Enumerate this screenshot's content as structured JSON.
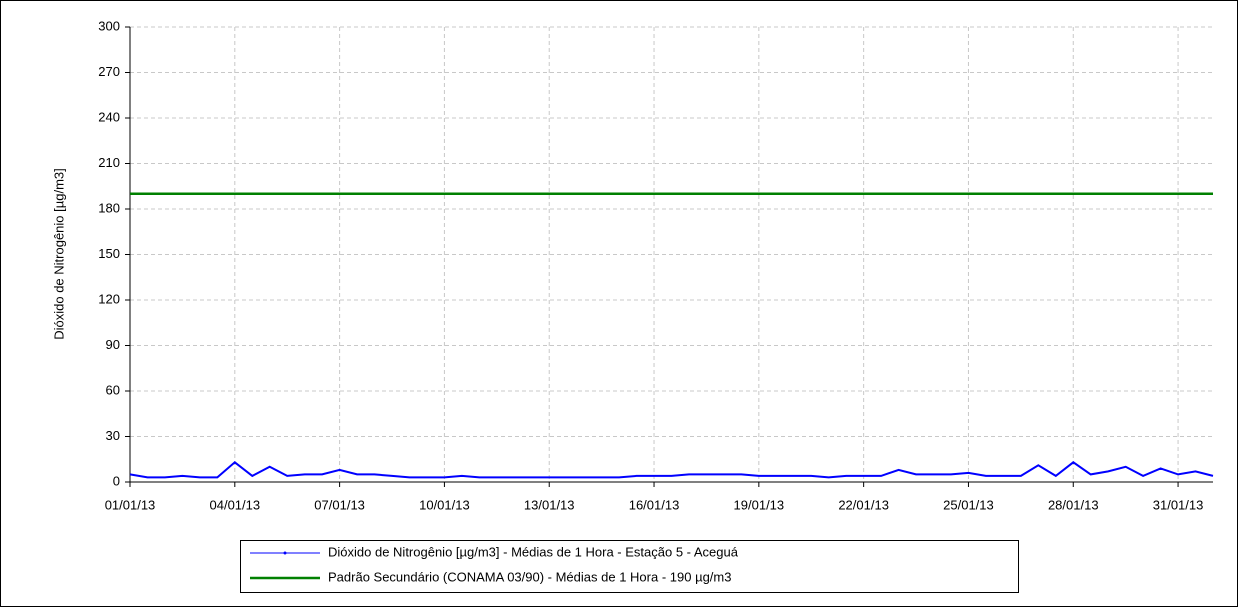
{
  "chart_data": {
    "type": "line",
    "ylabel": "Dióxido de Nitrogênio [µg/m3]",
    "xlim": [
      1,
      32
    ],
    "xticks": [
      {
        "value": 1,
        "label": "01/01/13"
      },
      {
        "value": 4,
        "label": "04/01/13"
      },
      {
        "value": 7,
        "label": "07/01/13"
      },
      {
        "value": 10,
        "label": "10/01/13"
      },
      {
        "value": 13,
        "label": "13/01/13"
      },
      {
        "value": 16,
        "label": "16/01/13"
      },
      {
        "value": 19,
        "label": "19/01/13"
      },
      {
        "value": 22,
        "label": "22/01/13"
      },
      {
        "value": 25,
        "label": "25/01/13"
      },
      {
        "value": 28,
        "label": "28/01/13"
      },
      {
        "value": 31,
        "label": "31/01/13"
      }
    ],
    "ylim": [
      0,
      300
    ],
    "yticks": [
      0,
      30,
      60,
      90,
      120,
      150,
      180,
      210,
      240,
      270,
      300
    ],
    "grid": true,
    "series": [
      {
        "name": "Dióxido de Nitrogênio [µg/m3] - Médias de 1 Hora - Estação 5 - Aceguá",
        "color": "#0000ff",
        "x": [
          1,
          1.5,
          2,
          2.5,
          3,
          3.5,
          4,
          4.5,
          5,
          5.5,
          6,
          6.5,
          7,
          7.5,
          8,
          8.5,
          9,
          9.5,
          10,
          10.5,
          11,
          11.5,
          12,
          12.5,
          13,
          13.5,
          14,
          14.5,
          15,
          15.5,
          16,
          16.5,
          17,
          17.5,
          18,
          18.5,
          19,
          19.5,
          20,
          20.5,
          21,
          21.5,
          22,
          22.5,
          23,
          23.5,
          24,
          24.5,
          25,
          25.5,
          26,
          26.5,
          27,
          27.5,
          28,
          28.5,
          29,
          29.5,
          30,
          30.5,
          31,
          31.5,
          32
        ],
        "values": [
          5,
          3,
          3,
          4,
          3,
          3,
          13,
          4,
          10,
          4,
          5,
          5,
          8,
          5,
          5,
          4,
          3,
          3,
          3,
          4,
          3,
          3,
          3,
          3,
          3,
          3,
          3,
          3,
          3,
          4,
          4,
          4,
          5,
          5,
          5,
          5,
          4,
          4,
          4,
          4,
          3,
          4,
          4,
          4,
          8,
          5,
          5,
          5,
          6,
          4,
          4,
          4,
          11,
          4,
          13,
          5,
          7,
          10,
          4,
          9,
          5,
          7,
          4
        ]
      },
      {
        "name": "Padrão Secundário (CONAMA 03/90) - Médias de 1 Hora - 190 µg/m3",
        "color": "#008000",
        "x": [
          1,
          32
        ],
        "values": [
          190,
          190
        ]
      }
    ]
  }
}
